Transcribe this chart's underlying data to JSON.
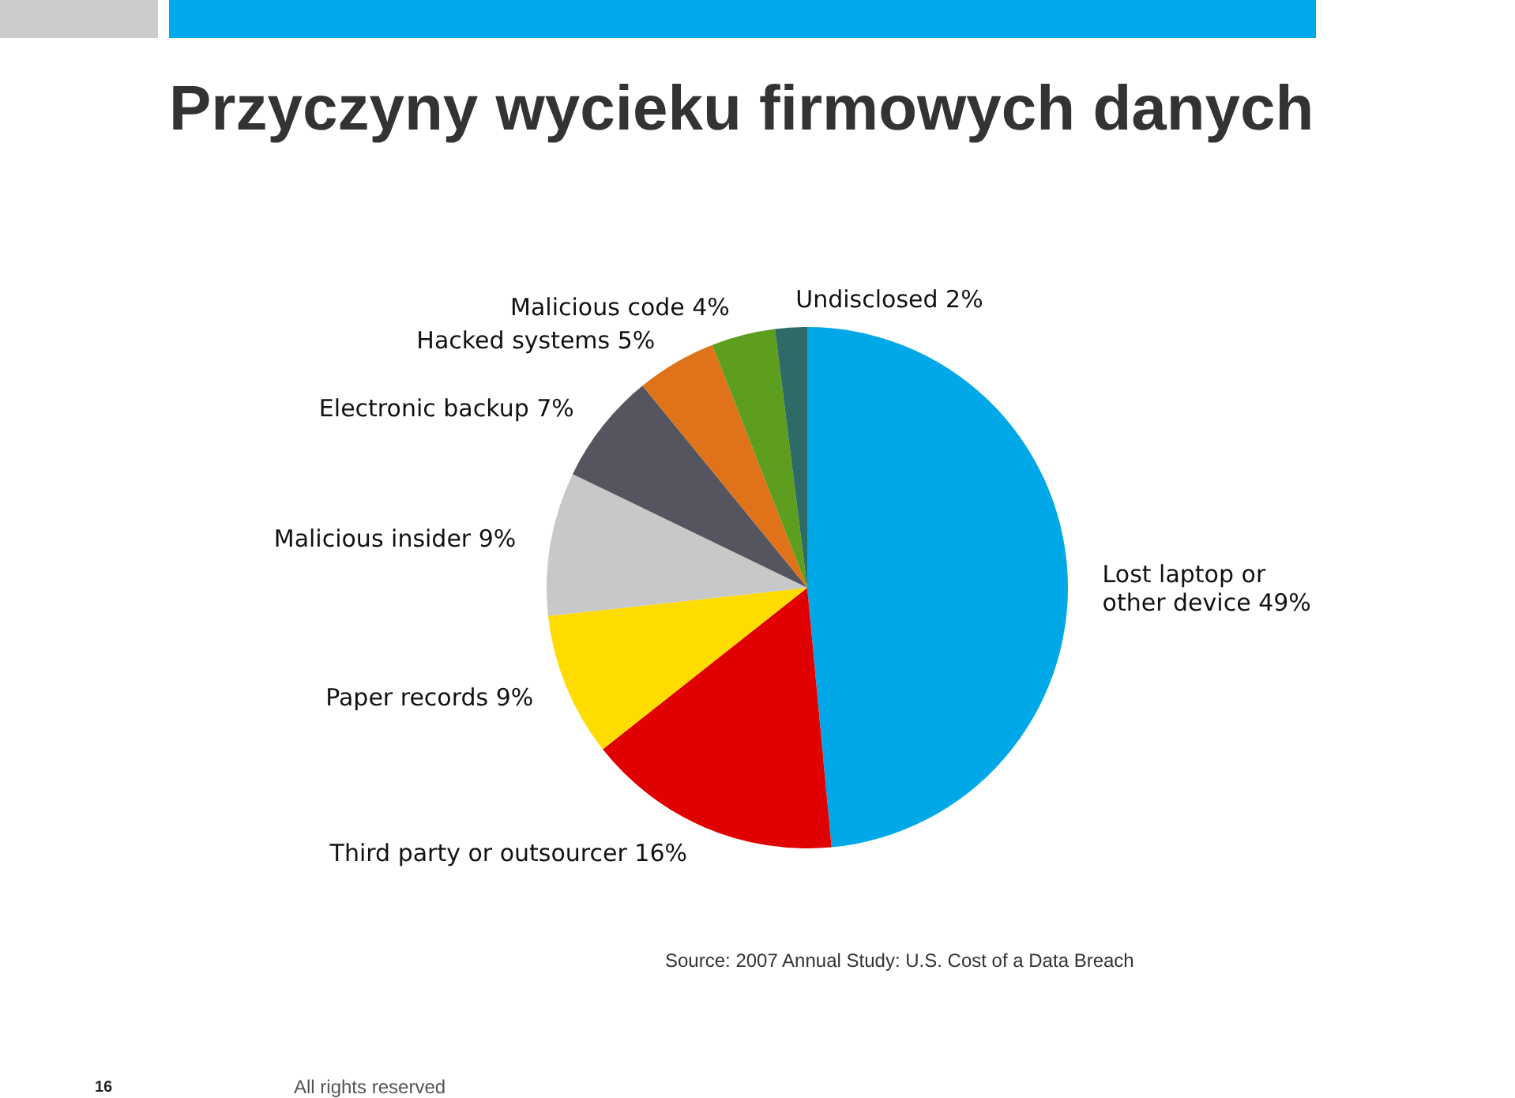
{
  "chart_data": {
    "type": "pie",
    "title": "Przyczyny wycieku firmowych danych",
    "categories": [
      "Lost laptop or other device",
      "Third party or outsourcer",
      "Paper records",
      "Malicious insider",
      "Electronic backup",
      "Hacked systems",
      "Malicious code",
      "Undisclosed"
    ],
    "values": [
      49,
      16,
      9,
      9,
      7,
      5,
      4,
      2
    ],
    "value_labels": [
      "49%",
      "16%",
      "9%",
      "9%",
      "7%",
      "5%",
      "4%",
      "2%"
    ],
    "colors": [
      "#00a8e8",
      "#e00000",
      "#ffdc00",
      "#c8c8c8",
      "#55555f",
      "#e0731a",
      "#5e9e1e",
      "#2e6b66"
    ],
    "annotations": [
      "Source: 2007 Annual Study: U.S. Cost of a Data Breach",
      "16",
      "All rights reserved"
    ]
  }
}
